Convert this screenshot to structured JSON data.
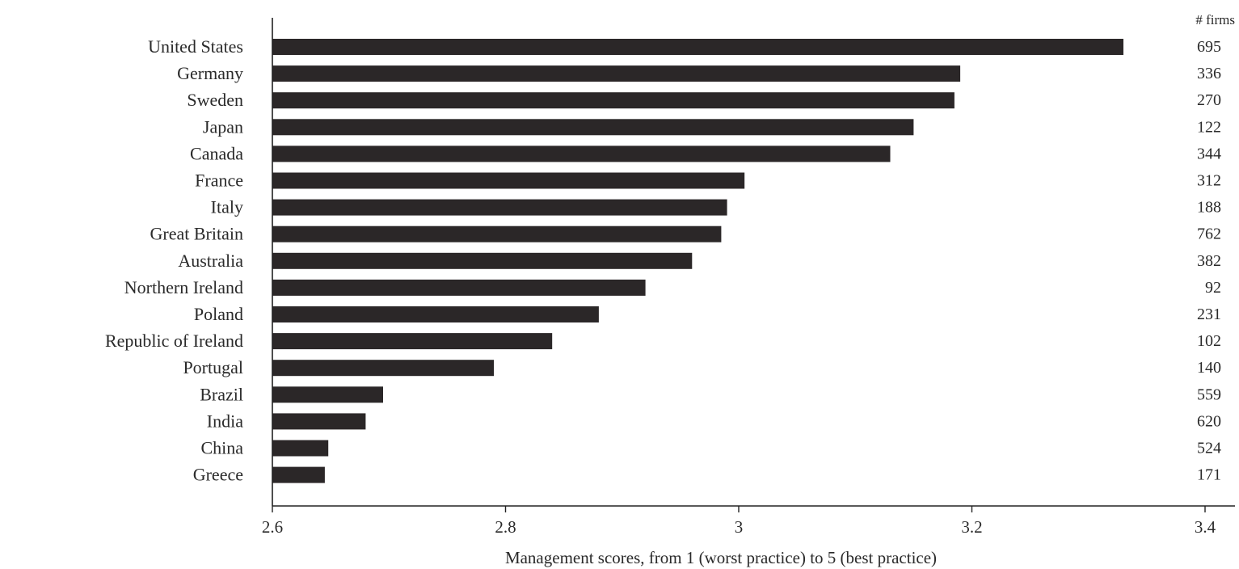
{
  "chart_data": {
    "type": "bar",
    "orientation": "horizontal",
    "title": "",
    "xlabel": "Management scores, from 1 (worst practice) to 5 (best practice)",
    "ylabel": "",
    "xlim": [
      2.6,
      3.4
    ],
    "xticks": [
      2.6,
      2.8,
      3,
      3.2,
      3.4
    ],
    "xtick_labels": [
      "2.6",
      "2.8",
      "3",
      "3.2",
      "3.4"
    ],
    "grid": false,
    "bar_color": "#2b2728",
    "categories": [
      "United States",
      "Germany",
      "Sweden",
      "Japan",
      "Canada",
      "France",
      "Italy",
      "Great Britain",
      "Australia",
      "Northern Ireland",
      "Poland",
      "Republic of Ireland",
      "Portugal",
      "Brazil",
      "India",
      "China",
      "Greece"
    ],
    "values": [
      3.33,
      3.19,
      3.185,
      3.15,
      3.13,
      3.005,
      2.99,
      2.985,
      2.96,
      2.92,
      2.88,
      2.84,
      2.79,
      2.695,
      2.68,
      2.648,
      2.645
    ],
    "annotation_header": "# firms",
    "annotations": [
      "695",
      "336",
      "270",
      "122",
      "344",
      "312",
      "188",
      "762",
      "382",
      "92",
      "231",
      "102",
      "140",
      "559",
      "620",
      "524",
      "171"
    ]
  }
}
